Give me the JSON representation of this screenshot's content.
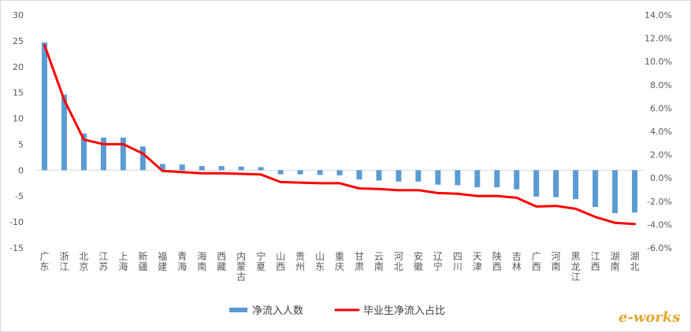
{
  "chart_data": {
    "type": "bar",
    "categories": [
      "广东",
      "浙江",
      "北京",
      "江苏",
      "上海",
      "新疆",
      "福建",
      "青海",
      "海南",
      "西藏",
      "内蒙古",
      "宁夏",
      "山西",
      "贵州",
      "山东",
      "重庆",
      "甘肃",
      "云南",
      "河北",
      "安徽",
      "辽宁",
      "四川",
      "天津",
      "陕西",
      "吉林",
      "广西",
      "河南",
      "黑龙江",
      "江西",
      "湖南",
      "湖北"
    ],
    "series": [
      {
        "name": "净流入人数",
        "type": "bar",
        "axis": "left",
        "color": "#5b9bd5",
        "values": [
          24.7,
          14.6,
          7.1,
          6.3,
          6.3,
          4.6,
          1.2,
          1.1,
          0.8,
          0.8,
          0.7,
          0.6,
          -0.8,
          -0.8,
          -0.9,
          -1.0,
          -1.8,
          -2.0,
          -2.2,
          -2.2,
          -2.8,
          -2.9,
          -3.3,
          -3.3,
          -3.7,
          -5.1,
          -5.2,
          -5.6,
          -7.1,
          -8.3,
          -8.2
        ]
      },
      {
        "name": "毕业生净流入占比",
        "type": "line",
        "axis": "right",
        "color": "#ff0000",
        "values": [
          11.4,
          6.7,
          3.3,
          2.9,
          2.9,
          2.1,
          0.6,
          0.5,
          0.4,
          0.4,
          0.35,
          0.3,
          -0.35,
          -0.4,
          -0.45,
          -0.45,
          -0.9,
          -0.95,
          -1.05,
          -1.05,
          -1.3,
          -1.35,
          -1.55,
          -1.55,
          -1.7,
          -2.45,
          -2.4,
          -2.65,
          -3.35,
          -3.85,
          -3.95
        ]
      }
    ],
    "y_left": {
      "min": -15,
      "max": 30,
      "step": 5,
      "ticks": [
        "30",
        "25",
        "20",
        "15",
        "10",
        "5",
        "0",
        "-5",
        "-10",
        "-15"
      ]
    },
    "y_right": {
      "min": -6,
      "max": 14,
      "step": 2,
      "ticks": [
        "14.0%",
        "12.0%",
        "10.0%",
        "8.0%",
        "6.0%",
        "4.0%",
        "2.0%",
        "0.0%",
        "-2.0%",
        "-4.0%",
        "-6.0%"
      ]
    },
    "grid": false,
    "legend": "bottom-center"
  },
  "watermark": {
    "text": "e-works"
  }
}
